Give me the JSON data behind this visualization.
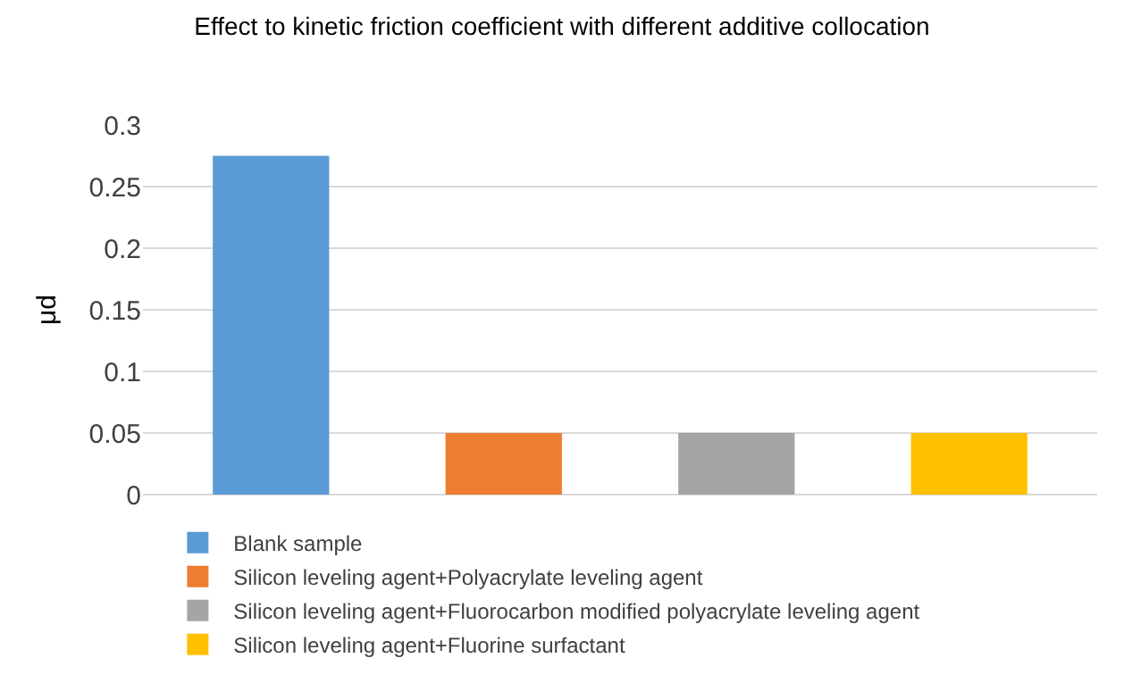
{
  "chart_data": {
    "type": "bar",
    "title": "Effect to kinetic friction coefficient with different additive collocation",
    "ylabel": "μd",
    "categories": [
      null,
      null,
      null,
      null
    ],
    "series": [
      {
        "name": "Blank sample",
        "color": "#5b9bd5",
        "values": [
          0.275,
          null,
          null,
          null
        ]
      },
      {
        "name": "Silicon leveling agent+Polyacrylate leveling agent",
        "color": "#ed7d31",
        "values": [
          null,
          0.05,
          null,
          null
        ]
      },
      {
        "name": "Silicon leveling agent+Fluorocarbon modified polyacrylate leveling agent",
        "color": "#a5a5a5",
        "values": [
          null,
          null,
          0.05,
          null
        ]
      },
      {
        "name": "Silicon leveling agent+Fluorine surfactant",
        "color": "#ffc000",
        "values": [
          null,
          null,
          null,
          0.05
        ]
      }
    ],
    "ylim": [
      0,
      0.3
    ],
    "yticks": [
      0,
      0.05,
      0.1,
      0.15,
      0.2,
      0.25,
      0.3
    ],
    "grid": "y",
    "legend": "bottom",
    "tick_labels": "y"
  }
}
